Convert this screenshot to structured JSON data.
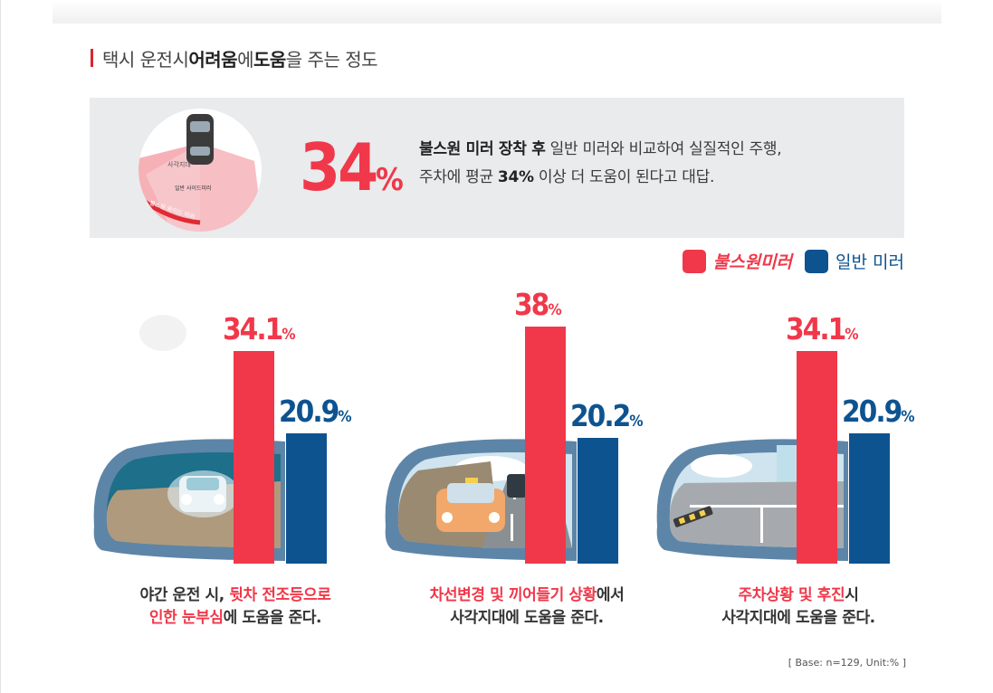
{
  "title": {
    "part1": "택시 운전시 ",
    "bold1": "어려움",
    "part2": "에 ",
    "bold2": "도움",
    "part3": "을 주는 정도"
  },
  "summary": {
    "big_value": "34",
    "big_unit": "%",
    "line1_bold": "불스원 미러 장착 후",
    "line1_rest": " 일반 미러와 비교하여 실질적인 주행,",
    "line2_a": "주차에 평균 ",
    "line2_bold": "34%",
    "line2_b": " 이상 더 도움이 된다고 대답.",
    "diagram": {
      "blind_label": "사각지대",
      "normal_label": "일반 사이드미러",
      "bullsone_label": "불스원 와이드 미러"
    }
  },
  "legend": {
    "bullsone": "불스원미러",
    "normal": "일반 미러"
  },
  "colors": {
    "bullsone": "#f0384a",
    "normal": "#0d5390"
  },
  "chart_data": {
    "type": "bar",
    "categories": [
      "야간 운전 시",
      "차선변경 및 끼어들기 상황",
      "주차상황 및 후진시"
    ],
    "series": [
      {
        "name": "불스원미러",
        "values": [
          34.1,
          38,
          34.1
        ]
      },
      {
        "name": "일반 미러",
        "values": [
          20.9,
          20.2,
          20.9
        ]
      }
    ],
    "labels": [
      {
        "bullsone": "34.1",
        "normal": "20.9"
      },
      {
        "bullsone": "38",
        "normal": "20.2"
      },
      {
        "bullsone": "34.1",
        "normal": "20.9"
      }
    ],
    "unit": "%",
    "ylim": [
      0,
      38
    ]
  },
  "captions": [
    {
      "line1_a": "야간 운전 시, ",
      "line1_hl": "뒷차 전조등으로",
      "line2_hl": "인한 눈부심",
      "line2_b": "에 도움을 준다."
    },
    {
      "line1_hl": "차선변경 및 끼어들기 상황",
      "line1_b": "에서",
      "line2_b": "사각지대에 도움을 준다."
    },
    {
      "line1_hl": "주차상황 및 후진",
      "line1_b": "시",
      "line2_b": "사각지대에 도움을 준다."
    }
  ],
  "base_note": "[ Base: n=129, Unit:% ]"
}
